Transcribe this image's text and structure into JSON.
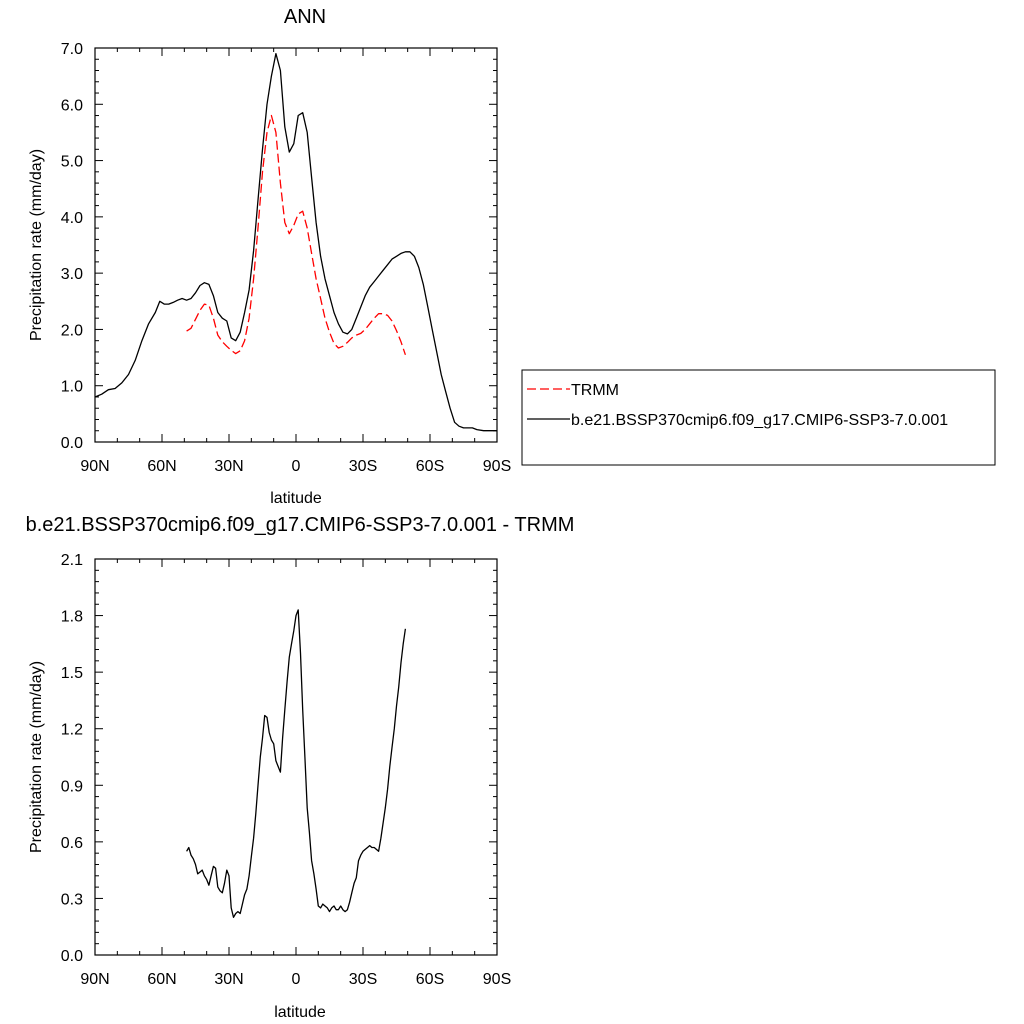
{
  "chart_data": [
    {
      "type": "line",
      "title": "ANN",
      "xlabel": "latitude",
      "ylabel": "Precipitation rate (mm/day)",
      "xlim": [
        90,
        -90
      ],
      "ylim": [
        0,
        7
      ],
      "xticks": [
        90,
        60,
        30,
        0,
        -30,
        -60,
        -90
      ],
      "xtick_labels": [
        "90N",
        "60N",
        "30N",
        "0",
        "30S",
        "60S",
        "90S"
      ],
      "yticks": [
        0,
        1,
        2,
        3,
        4,
        5,
        6,
        7
      ],
      "ytick_labels": [
        "0.0",
        "1.0",
        "2.0",
        "3.0",
        "4.0",
        "5.0",
        "6.0",
        "7.0"
      ],
      "grid": false,
      "legend": {
        "placement": "right",
        "entries": [
          {
            "label": "TRMM",
            "color": "#ff0000",
            "dash": "dashed"
          },
          {
            "label": "b.e21.BSSP370cmip6.f09_g17.CMIP6-SSP3-7.0.001",
            "color": "#000000",
            "dash": "solid"
          }
        ]
      },
      "series": [
        {
          "name": "TRMM",
          "color": "#ff0000",
          "dash": "dashed",
          "x": [
            49,
            47,
            45,
            43,
            41,
            39,
            37,
            35,
            33,
            31,
            29,
            27,
            25,
            23,
            21,
            19,
            17,
            15,
            13,
            11,
            9,
            7,
            5,
            3,
            1,
            -1,
            -3,
            -5,
            -7,
            -9,
            -11,
            -13,
            -15,
            -17,
            -19,
            -21,
            -23,
            -25,
            -27,
            -29,
            -31,
            -33,
            -35,
            -37,
            -39,
            -41,
            -43,
            -45,
            -47,
            -49
          ],
          "y": [
            1.97,
            2.02,
            2.18,
            2.34,
            2.45,
            2.43,
            2.2,
            1.9,
            1.78,
            1.7,
            1.63,
            1.57,
            1.62,
            1.8,
            2.2,
            2.9,
            3.8,
            4.8,
            5.5,
            5.8,
            5.5,
            4.6,
            3.9,
            3.7,
            3.85,
            4.05,
            4.1,
            3.8,
            3.35,
            2.9,
            2.55,
            2.2,
            1.95,
            1.75,
            1.67,
            1.7,
            1.77,
            1.85,
            1.9,
            1.93,
            2.0,
            2.1,
            2.2,
            2.28,
            2.28,
            2.25,
            2.15,
            1.98,
            1.78,
            1.55
          ]
        },
        {
          "name": "b.e21.BSSP370cmip6.f09_g17.CMIP6-SSP3-7.0.001",
          "color": "#000000",
          "dash": "solid",
          "x": [
            90,
            87,
            84,
            81,
            78,
            75,
            72,
            69,
            66,
            63,
            61,
            59,
            57,
            55,
            53,
            51,
            49,
            47,
            45,
            43,
            41,
            39,
            37,
            35,
            33,
            31,
            29,
            27,
            25,
            23,
            21,
            19,
            17,
            15,
            13,
            11,
            9,
            7,
            5,
            3,
            1,
            -1,
            -3,
            -5,
            -7,
            -9,
            -11,
            -13,
            -15,
            -17,
            -19,
            -21,
            -23,
            -25,
            -27,
            -29,
            -31,
            -33,
            -35,
            -37,
            -39,
            -41,
            -43,
            -45,
            -47,
            -49,
            -51,
            -53,
            -55,
            -57,
            -59,
            -61,
            -63,
            -65,
            -67,
            -69,
            -71,
            -73,
            -75,
            -77,
            -79,
            -81,
            -84,
            -87,
            -90
          ],
          "y": [
            0.8,
            0.85,
            0.93,
            0.95,
            1.05,
            1.2,
            1.45,
            1.8,
            2.1,
            2.3,
            2.5,
            2.45,
            2.45,
            2.48,
            2.52,
            2.55,
            2.52,
            2.55,
            2.65,
            2.78,
            2.83,
            2.8,
            2.6,
            2.3,
            2.2,
            2.15,
            1.85,
            1.8,
            1.95,
            2.3,
            2.7,
            3.4,
            4.3,
            5.2,
            6.0,
            6.5,
            6.9,
            6.6,
            5.6,
            5.15,
            5.3,
            5.8,
            5.85,
            5.5,
            4.7,
            3.9,
            3.3,
            2.9,
            2.6,
            2.3,
            2.1,
            1.95,
            1.92,
            2.0,
            2.2,
            2.4,
            2.6,
            2.75,
            2.85,
            2.95,
            3.05,
            3.15,
            3.25,
            3.3,
            3.35,
            3.38,
            3.38,
            3.3,
            3.1,
            2.8,
            2.4,
            2.0,
            1.6,
            1.2,
            0.9,
            0.6,
            0.35,
            0.28,
            0.25,
            0.25,
            0.25,
            0.22,
            0.2,
            0.2,
            0.2
          ]
        }
      ]
    },
    {
      "type": "line",
      "title": "b.e21.BSSP370cmip6.f09_g17.CMIP6-SSP3-7.0.001 - TRMM",
      "xlabel": "latitude",
      "ylabel": "Precipitation rate (mm/day)",
      "xlim": [
        90,
        -90
      ],
      "ylim": [
        0,
        2.1
      ],
      "xticks": [
        90,
        60,
        30,
        0,
        -30,
        -60,
        -90
      ],
      "xtick_labels": [
        "90N",
        "60N",
        "30N",
        "0",
        "30S",
        "60S",
        "90S"
      ],
      "yticks": [
        0,
        0.3,
        0.6,
        0.9,
        1.2,
        1.5,
        1.8,
        2.1
      ],
      "ytick_labels": [
        "0.0",
        "0.3",
        "0.6",
        "0.9",
        "1.2",
        "1.5",
        "1.8",
        "2.1"
      ],
      "grid": false,
      "series": [
        {
          "color": "#000000",
          "dash": "solid",
          "x": [
            49,
            48,
            47,
            46,
            45,
            44,
            43,
            42,
            41,
            40,
            39,
            38,
            37,
            36,
            35,
            34,
            33,
            32,
            31,
            30,
            29,
            28,
            27,
            26,
            25,
            24,
            23,
            22,
            21,
            20,
            19,
            18,
            17,
            16,
            15,
            14,
            13,
            12,
            11,
            10,
            9,
            8,
            7,
            6,
            5,
            4,
            3,
            2,
            1,
            0,
            -1,
            -2,
            -3,
            -4,
            -5,
            -6,
            -7,
            -8,
            -9,
            -10,
            -11,
            -12,
            -13,
            -14,
            -15,
            -16,
            -17,
            -18,
            -19,
            -20,
            -21,
            -22,
            -23,
            -24,
            -25,
            -26,
            -27,
            -28,
            -29,
            -30,
            -31,
            -32,
            -33,
            -34,
            -35,
            -36,
            -37,
            -38,
            -39,
            -40,
            -41,
            -42,
            -43,
            -44,
            -45,
            -46,
            -47,
            -48,
            -49
          ],
          "y": [
            0.55,
            0.57,
            0.53,
            0.51,
            0.48,
            0.43,
            0.44,
            0.45,
            0.42,
            0.4,
            0.37,
            0.42,
            0.47,
            0.46,
            0.36,
            0.34,
            0.33,
            0.38,
            0.45,
            0.42,
            0.25,
            0.2,
            0.22,
            0.23,
            0.22,
            0.27,
            0.32,
            0.35,
            0.42,
            0.52,
            0.62,
            0.75,
            0.9,
            1.05,
            1.15,
            1.27,
            1.26,
            1.18,
            1.14,
            1.12,
            1.03,
            1.0,
            0.97,
            1.15,
            1.3,
            1.45,
            1.58,
            1.65,
            1.72,
            1.8,
            1.83,
            1.6,
            1.3,
            1.05,
            0.78,
            0.65,
            0.5,
            0.43,
            0.35,
            0.26,
            0.25,
            0.27,
            0.26,
            0.25,
            0.23,
            0.25,
            0.26,
            0.24,
            0.24,
            0.26,
            0.24,
            0.23,
            0.24,
            0.28,
            0.33,
            0.38,
            0.41,
            0.5,
            0.53,
            0.55,
            0.56,
            0.57,
            0.58,
            0.57,
            0.57,
            0.56,
            0.55,
            0.62,
            0.7,
            0.78,
            0.88,
            1.0,
            1.1,
            1.2,
            1.32,
            1.42,
            1.55,
            1.65,
            1.73
          ]
        }
      ]
    }
  ]
}
